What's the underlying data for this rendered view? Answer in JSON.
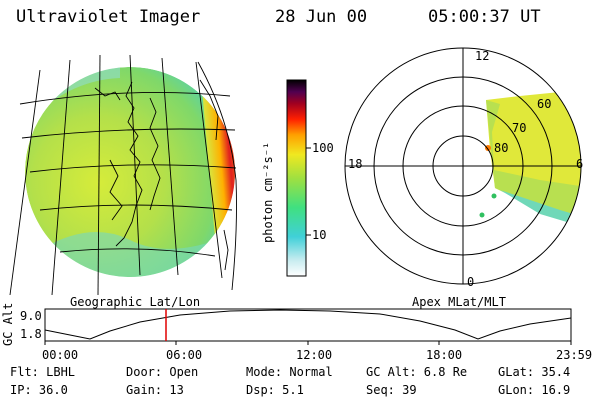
{
  "header": {
    "instrument": "Ultraviolet Imager",
    "date": "28 Jun 00",
    "time": "05:00:37 UT"
  },
  "left_panel": {
    "label": "Geographic Lat/Lon"
  },
  "colorbar": {
    "unit_label": "photon cm⁻²s⁻¹",
    "ticks": [
      {
        "label": "100",
        "value": 100
      },
      {
        "label": "10",
        "value": 10
      }
    ]
  },
  "polar_panel": {
    "label": "Apex  MLat/MLT",
    "mlt_labels": [
      {
        "label": "12",
        "position": "top"
      },
      {
        "label": "18",
        "position": "left"
      },
      {
        "label": "6",
        "position": "right"
      },
      {
        "label": "0",
        "position": "bottom"
      }
    ],
    "mlat_labels": [
      {
        "label": "60"
      },
      {
        "label": "70"
      },
      {
        "label": "80"
      }
    ]
  },
  "altitude_track": {
    "ylabel": "GC Alt",
    "y_ticks": [
      "9.0",
      "1.8"
    ],
    "x_ticks": [
      "00:00",
      "06:00",
      "12:00",
      "18:00",
      "23:59"
    ],
    "current_time_marker": "05:00"
  },
  "footer": {
    "flt": "Flt: LBHL",
    "ip": "IP: 36.0",
    "door": "Door: Open",
    "gain": "Gain: 13",
    "mode": "Mode: Normal",
    "dsp": "Dsp:   5.1",
    "gc_alt": "GC Alt: 6.8 Re",
    "seq": "Seq: 39",
    "glat": "GLat:  35.4",
    "glon": "GLon:  16.9"
  },
  "colors": {
    "background": "#ffffff",
    "ink": "#000000",
    "time_marker": "#e00000"
  }
}
